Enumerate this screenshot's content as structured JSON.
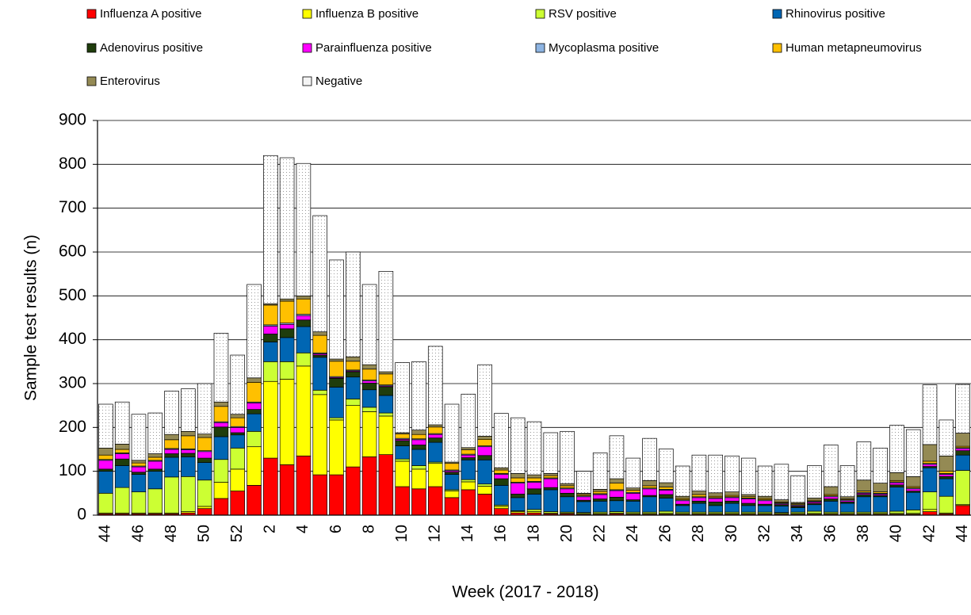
{
  "chart_data": {
    "type": "stacked-bar",
    "y_label": "Sample test results (n)",
    "x_label": "Week (2017 - 2018)",
    "ylim": [
      0,
      900
    ],
    "yticks": [
      0,
      100,
      200,
      300,
      400,
      500,
      600,
      700,
      800,
      900
    ],
    "grid": true,
    "categories": [
      "44",
      null,
      "46",
      null,
      "48",
      null,
      "50",
      null,
      "52",
      null,
      "2",
      null,
      "4",
      null,
      "6",
      null,
      "8",
      null,
      "10",
      null,
      "12",
      null,
      "14",
      null,
      "16",
      null,
      "18",
      null,
      "20",
      null,
      "22",
      null,
      "24",
      null,
      "26",
      null,
      "28",
      null,
      "30",
      null,
      "32",
      null,
      "34",
      null,
      "36",
      null,
      "38",
      null,
      "40",
      null,
      "42",
      null,
      "44"
    ],
    "series": [
      {
        "name": "Influenza A positive",
        "color": "#ff0000",
        "values": [
          3,
          3,
          3,
          3,
          3,
          5,
          15,
          38,
          55,
          68,
          130,
          115,
          135,
          92,
          92,
          110,
          133,
          138,
          65,
          60,
          65,
          40,
          58,
          48,
          15,
          5,
          5,
          3,
          3,
          2,
          2,
          3,
          2,
          2,
          2,
          2,
          2,
          2,
          2,
          2,
          2,
          2,
          2,
          2,
          2,
          2,
          2,
          2,
          2,
          2,
          8,
          3,
          22
        ]
      },
      {
        "name": "Influenza B positive",
        "color": "#ffff00",
        "values": [
          2,
          2,
          2,
          2,
          2,
          3,
          5,
          37,
          50,
          88,
          175,
          195,
          205,
          183,
          125,
          140,
          103,
          88,
          58,
          45,
          53,
          15,
          18,
          18,
          5,
          3,
          3,
          2,
          2,
          2,
          2,
          2,
          2,
          2,
          2,
          2,
          2,
          2,
          2,
          2,
          2,
          2,
          2,
          2,
          2,
          2,
          2,
          2,
          2,
          2,
          5,
          2,
          2
        ]
      },
      {
        "name": "RSV positive",
        "color": "#ccff33",
        "values": [
          45,
          58,
          48,
          55,
          82,
          80,
          60,
          52,
          48,
          35,
          45,
          40,
          30,
          10,
          5,
          15,
          10,
          7,
          5,
          8,
          3,
          3,
          5,
          5,
          3,
          2,
          5,
          3,
          2,
          2,
          3,
          3,
          3,
          3,
          5,
          3,
          3,
          3,
          3,
          3,
          3,
          2,
          3,
          5,
          3,
          3,
          3,
          3,
          5,
          8,
          40,
          38,
          78
        ]
      },
      {
        "name": "Rhinovirus positive",
        "color": "#0066b3",
        "values": [
          50,
          50,
          40,
          40,
          45,
          45,
          40,
          52,
          30,
          40,
          45,
          55,
          60,
          75,
          70,
          50,
          40,
          40,
          30,
          37,
          45,
          35,
          45,
          55,
          45,
          30,
          35,
          50,
          35,
          25,
          25,
          25,
          25,
          35,
          30,
          15,
          20,
          15,
          20,
          15,
          15,
          15,
          10,
          15,
          25,
          20,
          35,
          35,
          55,
          40,
          55,
          40,
          35
        ]
      },
      {
        "name": "Adenovirus positive",
        "color": "#1f3d0c",
        "values": [
          5,
          15,
          5,
          5,
          8,
          8,
          10,
          22,
          5,
          10,
          18,
          20,
          15,
          5,
          20,
          12,
          15,
          20,
          12,
          10,
          10,
          5,
          5,
          10,
          15,
          8,
          12,
          5,
          8,
          3,
          5,
          8,
          3,
          3,
          8,
          3,
          5,
          8,
          5,
          5,
          3,
          3,
          3,
          3,
          5,
          3,
          5,
          3,
          5,
          3,
          3,
          5,
          10
        ]
      },
      {
        "name": "Parainfluenza positive",
        "color": "#ff00ff",
        "values": [
          20,
          12,
          12,
          18,
          10,
          8,
          15,
          10,
          12,
          15,
          18,
          10,
          10,
          3,
          2,
          2,
          5,
          2,
          3,
          12,
          8,
          3,
          6,
          20,
          10,
          25,
          15,
          20,
          10,
          8,
          10,
          15,
          15,
          15,
          10,
          8,
          8,
          8,
          8,
          10,
          8,
          2,
          2,
          3,
          5,
          3,
          3,
          3,
          5,
          5,
          5,
          5,
          5
        ]
      },
      {
        "name": "Mycoplasma positive",
        "color": "#8db4e2",
        "values": [
          2,
          2,
          2,
          2,
          2,
          2,
          2,
          2,
          2,
          2,
          3,
          3,
          3,
          2,
          2,
          2,
          2,
          2,
          2,
          2,
          2,
          2,
          2,
          2,
          2,
          2,
          2,
          2,
          2,
          2,
          2,
          2,
          2,
          2,
          2,
          2,
          2,
          2,
          2,
          2,
          2,
          2,
          2,
          2,
          2,
          2,
          2,
          2,
          2,
          2,
          2,
          2,
          2
        ]
      },
      {
        "name": "Human metapneumovirus",
        "color": "#ffc000",
        "values": [
          10,
          8,
          7,
          7,
          20,
          30,
          30,
          35,
          20,
          45,
          45,
          50,
          35,
          40,
          35,
          20,
          25,
          25,
          10,
          10,
          15,
          15,
          10,
          15,
          8,
          10,
          8,
          5,
          5,
          3,
          5,
          15,
          5,
          5,
          5,
          3,
          5,
          3,
          3,
          3,
          3,
          2,
          2,
          2,
          3,
          2,
          3,
          3,
          3,
          3,
          5,
          5,
          3
        ]
      },
      {
        "name": "Enterovirus",
        "color": "#948a54",
        "values": [
          16,
          12,
          6,
          8,
          12,
          10,
          8,
          10,
          8,
          10,
          3,
          5,
          7,
          8,
          5,
          10,
          10,
          5,
          3,
          10,
          5,
          3,
          5,
          7,
          5,
          10,
          7,
          5,
          5,
          3,
          5,
          10,
          5,
          12,
          10,
          5,
          8,
          8,
          8,
          5,
          5,
          5,
          3,
          5,
          18,
          5,
          25,
          20,
          18,
          23,
          38,
          35,
          30
        ]
      },
      {
        "name": "Negative",
        "color": "#f4f4f4",
        "values": [
          100,
          96,
          105,
          93,
          99,
          97,
          115,
          157,
          135,
          213,
          338,
          322,
          302,
          265,
          226,
          239,
          183,
          229,
          160,
          156,
          179,
          132,
          122,
          163,
          124,
          127,
          121,
          93,
          119,
          50,
          83,
          98,
          68,
          96,
          77,
          69,
          82,
          86,
          82,
          83,
          69,
          81,
          61,
          74,
          95,
          71,
          87,
          80,
          108,
          107,
          136,
          82,
          111
        ]
      }
    ]
  }
}
